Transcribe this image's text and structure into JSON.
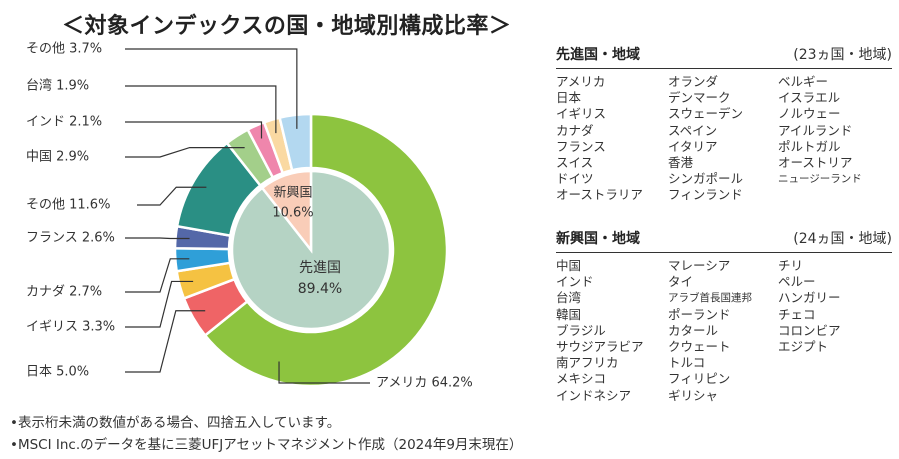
{
  "title": "＜対象インデックスの国・地域別構成比率＞",
  "chart_data": {
    "type": "donut",
    "outer_slices": [
      {
        "label": "アメリカ",
        "value": 64.2,
        "value_text": "64.2%",
        "color": "#8dc43f"
      },
      {
        "label": "日本",
        "value": 5.0,
        "value_text": "5.0%",
        "color": "#ef6466"
      },
      {
        "label": "イギリス",
        "value": 3.3,
        "value_text": "3.3%",
        "color": "#f5c242"
      },
      {
        "label": "カナダ",
        "value": 2.7,
        "value_text": "2.7%",
        "color": "#2f9fd8"
      },
      {
        "label": "フランス",
        "value": 2.6,
        "value_text": "2.6%",
        "color": "#5468a8"
      },
      {
        "label": "その他",
        "value": 11.6,
        "value_text": "11.6%",
        "color": "#2a8f84"
      },
      {
        "label": "中国",
        "value": 2.9,
        "value_text": "2.9%",
        "color": "#a3cf8a"
      },
      {
        "label": "インド",
        "value": 2.1,
        "value_text": "2.1%",
        "color": "#ef86ac"
      },
      {
        "label": "台湾",
        "value": 1.9,
        "value_text": "1.9%",
        "color": "#fad9a2"
      },
      {
        "label": "その他",
        "value": 3.7,
        "value_text": "3.7%",
        "color": "#b3d8f0"
      }
    ],
    "inner_slices": [
      {
        "label": "先進国",
        "value": 89.4,
        "value_text": "89.4%",
        "color": "#b5d3c4"
      },
      {
        "label": "新興国",
        "value": 10.6,
        "value_text": "10.6%",
        "color": "#f9cdb8"
      }
    ]
  },
  "developed": {
    "title": "先進国・地域",
    "count": "(23ヵ国・地域)",
    "countries": [
      "アメリカ",
      "日本",
      "イギリス",
      "カナダ",
      "フランス",
      "スイス",
      "ドイツ",
      "オーストラリア",
      "オランダ",
      "デンマーク",
      "スウェーデン",
      "スペイン",
      "イタリア",
      "香港",
      "シンガポール",
      "フィンランド",
      "ベルギー",
      "イスラエル",
      "ノルウェー",
      "アイルランド",
      "ポルトガル",
      "オーストリア",
      "ニュージーランド"
    ]
  },
  "emerging": {
    "title": "新興国・地域",
    "count": "(24ヵ国・地域)",
    "countries": [
      "中国",
      "インド",
      "台湾",
      "韓国",
      "ブラジル",
      "サウジアラビア",
      "南アフリカ",
      "メキシコ",
      "インドネシア",
      "マレーシア",
      "タイ",
      "アラブ首長国連邦",
      "ポーランド",
      "カタール",
      "クウェート",
      "トルコ",
      "フィリピン",
      "ギリシャ",
      "チリ",
      "ペルー",
      "ハンガリー",
      "チェコ",
      "コロンビア",
      "エジプト"
    ]
  },
  "notes": [
    "•表示桁未満の数値がある場合、四捨五入しています。",
    "•MSCI Inc.のデータを基に三菱UFJアセットマネジメント作成（2024年9月末現在）"
  ]
}
